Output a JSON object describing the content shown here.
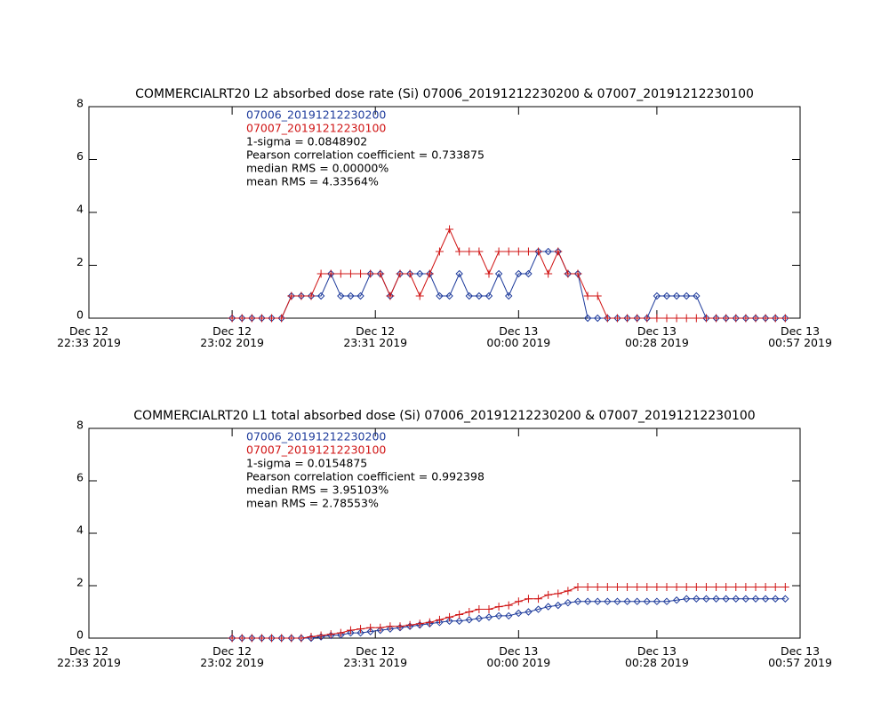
{
  "chart_data": [
    {
      "type": "line",
      "title": "COMMERCIALRT20 L2 absorbed dose rate (Si) 07006_20191212230200 & 07007_20191212230100",
      "x": [
        "2019-12-12T23:02",
        "2019-12-12T23:04",
        "2019-12-12T23:06",
        "2019-12-12T23:08",
        "2019-12-12T23:10",
        "2019-12-12T23:12",
        "2019-12-12T23:14",
        "2019-12-12T23:16",
        "2019-12-12T23:18",
        "2019-12-12T23:20",
        "2019-12-12T23:22",
        "2019-12-12T23:24",
        "2019-12-12T23:26",
        "2019-12-12T23:28",
        "2019-12-12T23:30",
        "2019-12-12T23:32",
        "2019-12-12T23:34",
        "2019-12-12T23:36",
        "2019-12-12T23:38",
        "2019-12-12T23:40",
        "2019-12-12T23:42",
        "2019-12-12T23:44",
        "2019-12-12T23:46",
        "2019-12-12T23:48",
        "2019-12-12T23:50",
        "2019-12-12T23:52",
        "2019-12-12T23:54",
        "2019-12-12T23:56",
        "2019-12-12T23:58",
        "2019-12-13T00:00",
        "2019-12-13T00:02",
        "2019-12-13T00:04",
        "2019-12-13T00:06",
        "2019-12-13T00:08",
        "2019-12-13T00:10",
        "2019-12-13T00:12",
        "2019-12-13T00:14",
        "2019-12-13T00:16",
        "2019-12-13T00:18",
        "2019-12-13T00:20",
        "2019-12-13T00:22",
        "2019-12-13T00:24",
        "2019-12-13T00:26",
        "2019-12-13T00:28",
        "2019-12-13T00:30",
        "2019-12-13T00:32",
        "2019-12-13T00:34",
        "2019-12-13T00:36",
        "2019-12-13T00:38",
        "2019-12-13T00:40",
        "2019-12-13T00:42",
        "2019-12-13T00:44",
        "2019-12-13T00:46",
        "2019-12-13T00:48",
        "2019-12-13T00:50",
        "2019-12-13T00:52",
        "2019-12-13T00:54"
      ],
      "xlim": [
        "2019-12-12T22:33",
        "2019-12-13T00:57"
      ],
      "xticks": [
        {
          "value": "2019-12-12T22:33",
          "label": "Dec 12\n22:33 2019"
        },
        {
          "value": "2019-12-12T23:02",
          "label": "Dec 12\n23:02 2019"
        },
        {
          "value": "2019-12-12T23:31",
          "label": "Dec 12\n23:31 2019"
        },
        {
          "value": "2019-12-13T00:00",
          "label": "Dec 13\n00:00 2019"
        },
        {
          "value": "2019-12-13T00:28",
          "label": "Dec 13\n00:28 2019"
        },
        {
          "value": "2019-12-13T00:57",
          "label": "Dec 13\n00:57 2019"
        }
      ],
      "ylim": [
        0,
        8
      ],
      "yticks": [
        0,
        2,
        4,
        6,
        8
      ],
      "series": [
        {
          "name": "07006_20191212230200",
          "color": "#1f3c9c",
          "marker": "diamond",
          "values": [
            0,
            0,
            0,
            0,
            0,
            0,
            0.84,
            0.84,
            0.84,
            0.84,
            1.68,
            0.84,
            0.84,
            0.84,
            1.68,
            1.68,
            0.84,
            1.68,
            1.68,
            1.68,
            1.68,
            0.84,
            0.84,
            1.68,
            0.84,
            0.84,
            0.84,
            1.68,
            0.84,
            1.68,
            1.68,
            2.52,
            2.52,
            2.52,
            1.68,
            1.68,
            0,
            0,
            0,
            0,
            0,
            0,
            0,
            0.84,
            0.84,
            0.84,
            0.84,
            0.84,
            0,
            0,
            0,
            0,
            0,
            0,
            0,
            0,
            0
          ]
        },
        {
          "name": "07007_20191212230100",
          "color": "#d01414",
          "marker": "plus",
          "values": [
            0,
            0,
            0,
            0,
            0,
            0,
            0.84,
            0.84,
            0.84,
            1.68,
            1.68,
            1.68,
            1.68,
            1.68,
            1.68,
            1.68,
            0.84,
            1.68,
            1.68,
            0.84,
            1.68,
            2.52,
            3.36,
            2.52,
            2.52,
            2.52,
            1.68,
            2.52,
            2.52,
            2.52,
            2.52,
            2.52,
            1.68,
            2.52,
            1.68,
            1.68,
            0.84,
            0.84,
            0,
            0,
            0,
            0,
            0,
            0,
            0,
            0,
            0,
            0,
            0,
            0,
            0,
            0,
            0,
            0,
            0,
            0,
            0
          ]
        }
      ],
      "annotations": [
        "1-sigma = 0.0848902",
        "Pearson correlation coefficient = 0.733875",
        "median RMS = 0.00000%",
        "mean RMS = 4.33564%"
      ]
    },
    {
      "type": "line",
      "title": "COMMERCIALRT20 L1 total absorbed dose (Si) 07006_20191212230200 & 07007_20191212230100",
      "x": [
        "2019-12-12T23:02",
        "2019-12-12T23:04",
        "2019-12-12T23:06",
        "2019-12-12T23:08",
        "2019-12-12T23:10",
        "2019-12-12T23:12",
        "2019-12-12T23:14",
        "2019-12-12T23:16",
        "2019-12-12T23:18",
        "2019-12-12T23:20",
        "2019-12-12T23:22",
        "2019-12-12T23:24",
        "2019-12-12T23:26",
        "2019-12-12T23:28",
        "2019-12-12T23:30",
        "2019-12-12T23:32",
        "2019-12-12T23:34",
        "2019-12-12T23:36",
        "2019-12-12T23:38",
        "2019-12-12T23:40",
        "2019-12-12T23:42",
        "2019-12-12T23:44",
        "2019-12-12T23:46",
        "2019-12-12T23:48",
        "2019-12-12T23:50",
        "2019-12-12T23:52",
        "2019-12-12T23:54",
        "2019-12-12T23:56",
        "2019-12-12T23:58",
        "2019-12-13T00:00",
        "2019-12-13T00:02",
        "2019-12-13T00:04",
        "2019-12-13T00:06",
        "2019-12-13T00:08",
        "2019-12-13T00:10",
        "2019-12-13T00:12",
        "2019-12-13T00:14",
        "2019-12-13T00:16",
        "2019-12-13T00:18",
        "2019-12-13T00:20",
        "2019-12-13T00:22",
        "2019-12-13T00:24",
        "2019-12-13T00:26",
        "2019-12-13T00:28",
        "2019-12-13T00:30",
        "2019-12-13T00:32",
        "2019-12-13T00:34",
        "2019-12-13T00:36",
        "2019-12-13T00:38",
        "2019-12-13T00:40",
        "2019-12-13T00:42",
        "2019-12-13T00:44",
        "2019-12-13T00:46",
        "2019-12-13T00:48",
        "2019-12-13T00:50",
        "2019-12-13T00:52",
        "2019-12-13T00:54"
      ],
      "xlim": [
        "2019-12-12T22:33",
        "2019-12-13T00:57"
      ],
      "xticks": [
        {
          "value": "2019-12-12T22:33",
          "label": "Dec 12\n22:33 2019"
        },
        {
          "value": "2019-12-12T23:02",
          "label": "Dec 12\n23:02 2019"
        },
        {
          "value": "2019-12-12T23:31",
          "label": "Dec 12\n23:31 2019"
        },
        {
          "value": "2019-12-13T00:00",
          "label": "Dec 13\n00:00 2019"
        },
        {
          "value": "2019-12-13T00:28",
          "label": "Dec 13\n00:28 2019"
        },
        {
          "value": "2019-12-13T00:57",
          "label": "Dec 13\n00:57 2019"
        }
      ],
      "ylim": [
        0,
        8
      ],
      "yticks": [
        0,
        2,
        4,
        6,
        8
      ],
      "series": [
        {
          "name": "07006_20191212230200",
          "color": "#1f3c9c",
          "marker": "diamond",
          "values": [
            0,
            0,
            0,
            0,
            0,
            0,
            0,
            0,
            0,
            0.05,
            0.1,
            0.12,
            0.2,
            0.2,
            0.25,
            0.3,
            0.35,
            0.4,
            0.45,
            0.5,
            0.55,
            0.6,
            0.65,
            0.65,
            0.7,
            0.75,
            0.8,
            0.85,
            0.85,
            0.95,
            1.0,
            1.1,
            1.2,
            1.25,
            1.35,
            1.4,
            1.4,
            1.4,
            1.4,
            1.4,
            1.4,
            1.4,
            1.4,
            1.4,
            1.4,
            1.45,
            1.5,
            1.5,
            1.5,
            1.5,
            1.5,
            1.5,
            1.5,
            1.5,
            1.5,
            1.5,
            1.5
          ]
        },
        {
          "name": "07007_20191212230100",
          "color": "#d01414",
          "marker": "plus",
          "values": [
            0,
            0,
            0,
            0,
            0,
            0,
            0,
            0,
            0.05,
            0.1,
            0.15,
            0.2,
            0.3,
            0.35,
            0.4,
            0.4,
            0.45,
            0.45,
            0.5,
            0.55,
            0.6,
            0.7,
            0.8,
            0.9,
            1.0,
            1.1,
            1.1,
            1.2,
            1.25,
            1.4,
            1.5,
            1.5,
            1.65,
            1.7,
            1.8,
            1.95,
            1.95,
            1.95,
            1.95,
            1.95,
            1.95,
            1.95,
            1.95,
            1.95,
            1.95,
            1.95,
            1.95,
            1.95,
            1.95,
            1.95,
            1.95,
            1.95,
            1.95,
            1.95,
            1.95,
            1.95,
            1.95
          ]
        }
      ],
      "annotations": [
        "1-sigma = 0.0154875",
        "Pearson correlation coefficient = 0.992398",
        "median RMS = 3.95103%",
        "mean RMS = 2.78553%"
      ]
    }
  ]
}
